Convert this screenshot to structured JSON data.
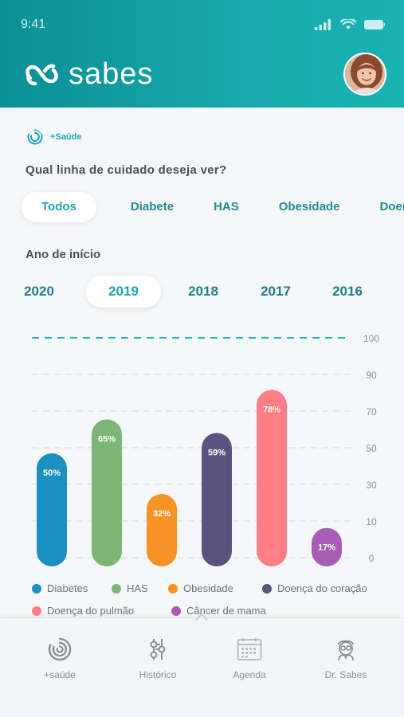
{
  "status_bar": {
    "time": "9:41",
    "icons": [
      "signal-icon",
      "wifi-icon",
      "battery-icon"
    ]
  },
  "header": {
    "app_name": "sabes",
    "colors": {
      "gradient_start": "#0b8f96",
      "gradient_end": "#1ab2b3"
    }
  },
  "badge": {
    "label": "+Saúde"
  },
  "filters": {
    "question": "Qual linha de cuidado deseja ver?",
    "chips": [
      {
        "label": "Todos",
        "active": true
      },
      {
        "label": "Diabete",
        "active": false
      },
      {
        "label": "HAS",
        "active": false
      },
      {
        "label": "Obesidade",
        "active": false
      },
      {
        "label": "Doenç",
        "active": false
      }
    ]
  },
  "year_filter": {
    "label": "Ano de início",
    "years": [
      {
        "label": "2020",
        "active": false
      },
      {
        "label": "2019",
        "active": true
      },
      {
        "label": "2018",
        "active": false
      },
      {
        "label": "2017",
        "active": false
      },
      {
        "label": "2016",
        "active": false
      }
    ]
  },
  "chart_data": {
    "type": "bar",
    "categories": [
      "Diabetes",
      "HAS",
      "Obesidade",
      "Doença do coração",
      "Doença do pulmão",
      "Câncer de mama"
    ],
    "values": [
      50,
      65,
      32,
      59,
      78,
      17
    ],
    "value_labels": [
      "50%",
      "65%",
      "32%",
      "59%",
      "78%",
      "17%"
    ],
    "colors": [
      "#1a8fc0",
      "#7db575",
      "#f59425",
      "#5a5380",
      "#ff7e85",
      "#a75db3"
    ],
    "axis_ticks": [
      "100",
      "90",
      "70",
      "50",
      "30",
      "10",
      "0"
    ],
    "reference_line": 100,
    "reference_color": "#19b3c1",
    "legend_position": "bottom",
    "grid": true
  },
  "legend": {
    "items": [
      {
        "label": "Diabetes",
        "color": "#1a8fc0"
      },
      {
        "label": "HAS",
        "color": "#7db575"
      },
      {
        "label": "Obesidade",
        "color": "#f59425"
      },
      {
        "label": "Doença do coração",
        "color": "#5a5380"
      },
      {
        "label": "Doença do pulmão",
        "color": "#ff7e85"
      },
      {
        "label": "Câncer de mama",
        "color": "#a75db3"
      }
    ]
  },
  "bottom_nav": {
    "items": [
      {
        "label": "+saúde",
        "icon": "saude-ring-icon"
      },
      {
        "label": "Histórico",
        "icon": "timeline-icon"
      },
      {
        "label": "Agenda",
        "icon": "calendar-icon"
      },
      {
        "label": "Dr. Sabes",
        "icon": "doctor-icon"
      }
    ]
  }
}
